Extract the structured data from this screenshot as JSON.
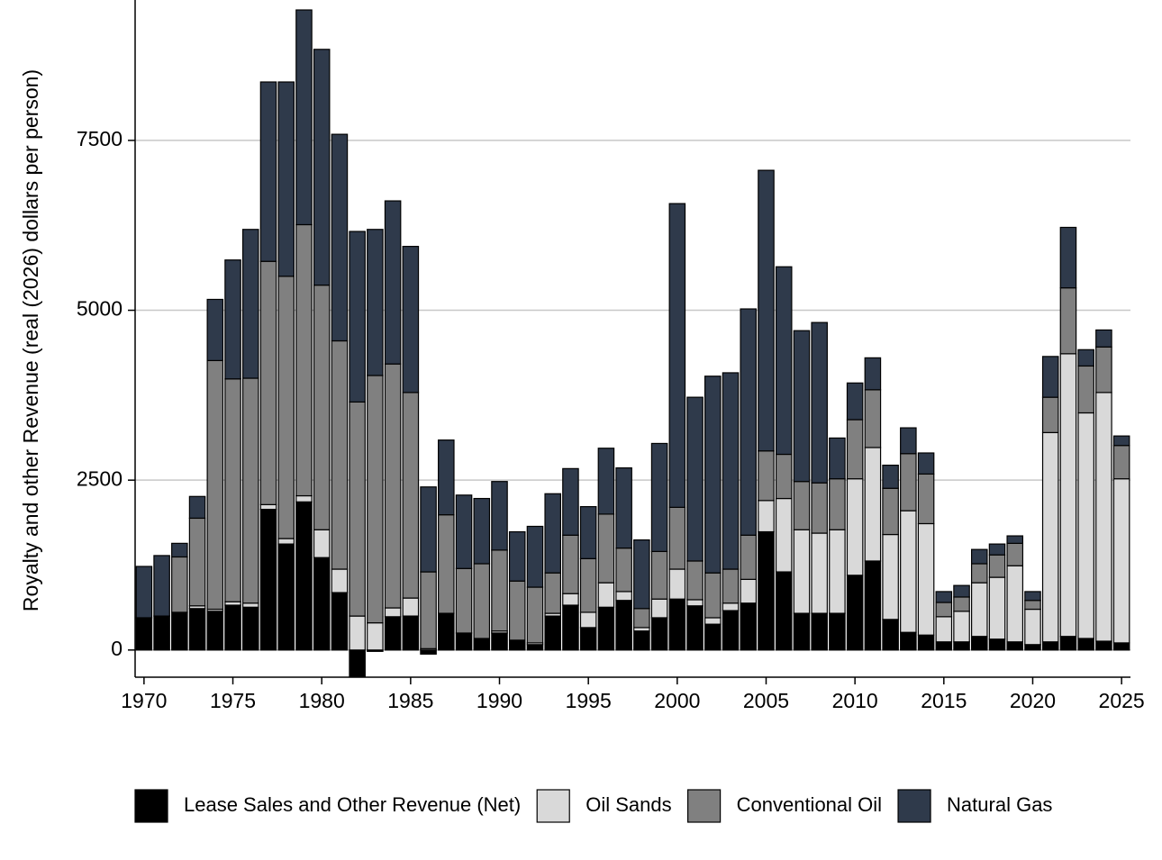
{
  "chart_data": {
    "type": "stacked_bar",
    "y_label": "Royalty and other Revenue (real (2026) dollars per person)",
    "x": [
      1970,
      1971,
      1972,
      1973,
      1974,
      1975,
      1976,
      1977,
      1978,
      1979,
      1980,
      1981,
      1982,
      1983,
      1984,
      1985,
      1986,
      1987,
      1988,
      1989,
      1990,
      1991,
      1992,
      1993,
      1994,
      1995,
      1996,
      1997,
      1998,
      1999,
      2000,
      2001,
      2002,
      2003,
      2004,
      2005,
      2006,
      2007,
      2008,
      2009,
      2010,
      2011,
      2012,
      2013,
      2014,
      2015,
      2016,
      2017,
      2018,
      2019,
      2020,
      2021,
      2022,
      2023,
      2024,
      2025
    ],
    "series": [
      {
        "name": "Lease Sales and Other Revenue (Net)",
        "color": "#000000",
        "values": [
          475,
          500,
          555,
          610,
          570,
          660,
          630,
          2070,
          1560,
          2180,
          1360,
          845,
          -400,
          -20,
          490,
          500,
          -60,
          540,
          250,
          170,
          250,
          145,
          80,
          500,
          660,
          330,
          630,
          730,
          280,
          475,
          750,
          650,
          380,
          580,
          690,
          1740,
          1150,
          540,
          540,
          540,
          1100,
          1310,
          450,
          260,
          220,
          120,
          120,
          200,
          160,
          120,
          80,
          120,
          200,
          170,
          130,
          105
        ]
      },
      {
        "name": "Oil Sands",
        "color": "#d9d9d9",
        "values": [
          0,
          0,
          0,
          40,
          30,
          50,
          60,
          70,
          80,
          90,
          410,
          345,
          500,
          400,
          130,
          265,
          20,
          0,
          0,
          0,
          30,
          0,
          25,
          40,
          170,
          225,
          360,
          130,
          50,
          275,
          440,
          90,
          95,
          110,
          350,
          460,
          1080,
          1230,
          1180,
          1230,
          1420,
          1670,
          1250,
          1790,
          1640,
          370,
          450,
          790,
          910,
          1120,
          520,
          3080,
          4160,
          3320,
          3660,
          2415
        ]
      },
      {
        "name": "Conventional Oil",
        "color": "#808080",
        "values": [
          0,
          0,
          815,
          1290,
          3660,
          3280,
          3310,
          3580,
          3860,
          3990,
          3600,
          3360,
          3150,
          3640,
          3590,
          3025,
          1130,
          1450,
          950,
          1100,
          1190,
          870,
          820,
          595,
          860,
          790,
          1010,
          640,
          280,
          700,
          910,
          570,
          660,
          500,
          650,
          730,
          650,
          710,
          740,
          750,
          870,
          850,
          680,
          840,
          730,
          210,
          210,
          280,
          330,
          330,
          130,
          520,
          970,
          690,
          670,
          490
        ]
      },
      {
        "name": "Natural Gas",
        "color": "#2f3a4b",
        "values": [
          755,
          890,
          200,
          320,
          900,
          1750,
          2190,
          2640,
          2860,
          3160,
          3470,
          3040,
          2510,
          2150,
          2400,
          2150,
          1250,
          1100,
          1080,
          960,
          1010,
          725,
          895,
          1165,
          980,
          765,
          970,
          1180,
          1010,
          1590,
          4470,
          2410,
          2895,
          2890,
          3330,
          4130,
          2760,
          2220,
          2360,
          600,
          540,
          470,
          340,
          380,
          310,
          160,
          170,
          210,
          160,
          110,
          130,
          600,
          890,
          240,
          250,
          140
        ]
      }
    ],
    "xlim": [
      1969.5,
      2025.5
    ],
    "xticks": [
      1970,
      1975,
      1980,
      1985,
      1990,
      1995,
      2000,
      2005,
      2010,
      2015,
      2020,
      2025
    ],
    "ylim": [
      -400,
      9500
    ],
    "yticks": [
      0,
      2500,
      5000,
      7500
    ],
    "grid": true,
    "legend": "bottom"
  }
}
